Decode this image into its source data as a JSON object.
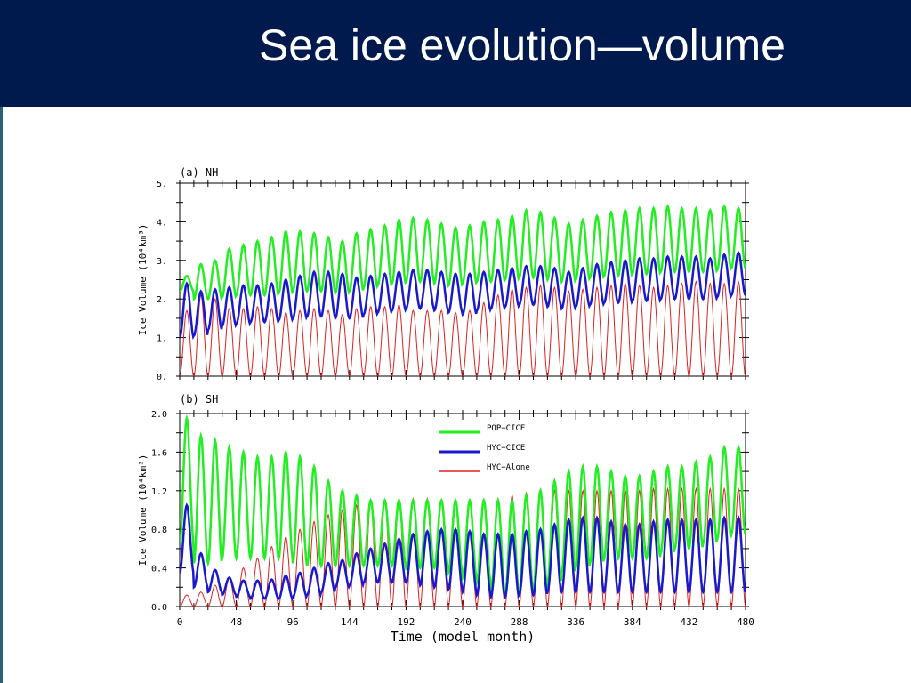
{
  "slide": {
    "title": "Sea ice evolution—volume"
  },
  "colors": {
    "title_bar": "#001a4d",
    "title_text": "#ffffff",
    "background": "#ffffff"
  },
  "chart_data": [
    {
      "type": "line",
      "panel_label": "(a) NH",
      "xlabel": "",
      "ylabel": "Ice Volume (10⁴km³)",
      "xlim": [
        0,
        480
      ],
      "ylim": [
        0,
        5
      ],
      "xticks": [
        0,
        48,
        96,
        144,
        192,
        240,
        288,
        336,
        384,
        432,
        480
      ],
      "yticks": [
        0,
        1,
        2,
        3,
        4,
        5
      ],
      "ytick_labels": [
        "0.",
        "1.",
        "2.",
        "3.",
        "4.",
        "5."
      ],
      "xtick_labels_visible": false,
      "grid": false,
      "series": [
        {
          "name": "POP−CICE",
          "color": "#22ee22",
          "width": 2.5,
          "seasonal_cycle_months": 12,
          "annual_max": [
            2.6,
            2.9,
            3.0,
            3.3,
            3.4,
            3.5,
            3.6,
            3.75,
            3.75,
            3.7,
            3.6,
            3.5,
            3.7,
            3.8,
            3.9,
            4.05,
            4.1,
            4.05,
            3.95,
            3.85,
            3.9,
            4.0,
            4.05,
            4.15,
            4.3,
            4.25,
            4.1,
            3.95,
            4.05,
            4.15,
            4.25,
            4.3,
            4.35,
            4.35,
            4.4,
            4.35,
            4.35,
            4.3,
            4.4,
            4.35
          ],
          "annual_min": [
            2.2,
            2.0,
            2.0,
            2.05,
            2.1,
            2.1,
            2.1,
            2.15,
            2.2,
            2.2,
            2.2,
            2.15,
            2.2,
            2.3,
            2.35,
            2.4,
            2.45,
            2.45,
            2.4,
            2.35,
            2.4,
            2.45,
            2.45,
            2.5,
            2.55,
            2.55,
            2.5,
            2.45,
            2.5,
            2.55,
            2.6,
            2.6,
            2.65,
            2.65,
            2.7,
            2.7,
            2.7,
            2.7,
            2.75,
            2.8
          ]
        },
        {
          "name": "HYC−CICE",
          "color": "#1a1acc",
          "width": 2.5,
          "seasonal_cycle_months": 12,
          "annual_max": [
            2.4,
            2.2,
            2.25,
            2.3,
            2.35,
            2.35,
            2.4,
            2.5,
            2.6,
            2.7,
            2.7,
            2.65,
            2.55,
            2.6,
            2.65,
            2.7,
            2.75,
            2.75,
            2.7,
            2.65,
            2.65,
            2.7,
            2.75,
            2.8,
            2.85,
            2.85,
            2.8,
            2.7,
            2.8,
            2.9,
            2.95,
            3.0,
            3.05,
            3.05,
            3.1,
            3.1,
            3.1,
            3.05,
            3.15,
            3.2
          ],
          "annual_min": [
            1.0,
            1.05,
            1.2,
            1.3,
            1.35,
            1.4,
            1.4,
            1.45,
            1.5,
            1.55,
            1.55,
            1.5,
            1.5,
            1.6,
            1.65,
            1.7,
            1.75,
            1.75,
            1.7,
            1.65,
            1.6,
            1.7,
            1.75,
            1.8,
            1.85,
            1.85,
            1.8,
            1.75,
            1.8,
            1.85,
            1.9,
            1.9,
            1.95,
            1.95,
            2.0,
            2.0,
            2.0,
            2.0,
            2.05,
            2.1
          ]
        },
        {
          "name": "HYC−Alone",
          "color": "#dd2222",
          "width": 1,
          "seasonal_cycle_months": 12,
          "annual_max": [
            1.7,
            2.1,
            2.0,
            1.75,
            1.75,
            1.8,
            1.75,
            1.65,
            1.7,
            1.75,
            1.7,
            1.6,
            1.75,
            1.8,
            1.8,
            1.85,
            1.7,
            1.7,
            1.7,
            1.65,
            1.7,
            1.9,
            2.1,
            2.25,
            2.3,
            2.35,
            2.3,
            2.2,
            2.25,
            2.3,
            2.35,
            2.4,
            2.35,
            2.3,
            2.35,
            2.4,
            2.45,
            2.4,
            2.4,
            2.45
          ],
          "annual_min": [
            0.0,
            0.0,
            0.0,
            0.0,
            0.0,
            0.0,
            0.0,
            0.0,
            0.0,
            0.0,
            0.0,
            0.0,
            0.0,
            0.0,
            0.0,
            0.0,
            0.0,
            0.0,
            0.0,
            0.0,
            0.0,
            0.0,
            0.0,
            0.0,
            0.0,
            0.0,
            0.0,
            0.0,
            0.0,
            0.0,
            0.0,
            0.0,
            0.0,
            0.0,
            0.0,
            0.0,
            0.0,
            0.0,
            0.0,
            0.0
          ]
        }
      ]
    },
    {
      "type": "line",
      "panel_label": "(b) SH",
      "xlabel": "Time (model month)",
      "ylabel": "Ice Volume (10⁴km³)",
      "xlim": [
        0,
        480
      ],
      "ylim": [
        0,
        2.0
      ],
      "xticks": [
        0,
        48,
        96,
        144,
        192,
        240,
        288,
        336,
        384,
        432,
        480
      ],
      "yticks": [
        0,
        0.4,
        0.8,
        1.2,
        1.6,
        2.0
      ],
      "ytick_labels": [
        "0.0",
        "0.4",
        "0.8",
        "1.2",
        "1.6",
        "2.0"
      ],
      "xtick_labels_visible": true,
      "grid": false,
      "legend": {
        "placement": "top-center"
      },
      "series": [
        {
          "name": "POP−CICE",
          "color": "#22ee22",
          "width": 2.5,
          "seasonal_cycle_months": 12,
          "annual_max": [
            1.95,
            1.77,
            1.72,
            1.65,
            1.6,
            1.55,
            1.55,
            1.6,
            1.55,
            1.45,
            1.3,
            1.2,
            1.15,
            1.1,
            1.1,
            1.1,
            1.1,
            1.1,
            1.1,
            1.1,
            1.1,
            1.1,
            1.1,
            1.1,
            1.15,
            1.2,
            1.3,
            1.4,
            1.45,
            1.45,
            1.4,
            1.35,
            1.35,
            1.4,
            1.45,
            1.45,
            1.5,
            1.55,
            1.65,
            1.65
          ],
          "annual_min": [
            0.65,
            0.45,
            0.45,
            0.5,
            0.5,
            0.5,
            0.5,
            0.5,
            0.45,
            0.42,
            0.42,
            0.42,
            0.42,
            0.42,
            0.42,
            0.42,
            0.4,
            0.4,
            0.4,
            0.35,
            0.3,
            0.25,
            0.15,
            0.12,
            0.15,
            0.18,
            0.25,
            0.35,
            0.4,
            0.45,
            0.5,
            0.5,
            0.5,
            0.5,
            0.55,
            0.6,
            0.6,
            0.65,
            0.7,
            0.75
          ]
        },
        {
          "name": "HYC−CICE",
          "color": "#1a1acc",
          "width": 2.5,
          "seasonal_cycle_months": 12,
          "annual_max": [
            1.05,
            0.55,
            0.38,
            0.3,
            0.27,
            0.27,
            0.28,
            0.32,
            0.35,
            0.4,
            0.45,
            0.48,
            0.55,
            0.6,
            0.65,
            0.7,
            0.75,
            0.78,
            0.8,
            0.8,
            0.78,
            0.75,
            0.75,
            0.75,
            0.78,
            0.8,
            0.85,
            0.9,
            0.92,
            0.92,
            0.88,
            0.85,
            0.85,
            0.88,
            0.9,
            0.9,
            0.9,
            0.9,
            0.92,
            0.92
          ],
          "annual_min": [
            0.35,
            0.2,
            0.15,
            0.12,
            0.1,
            0.08,
            0.08,
            0.08,
            0.1,
            0.12,
            0.15,
            0.2,
            0.22,
            0.25,
            0.25,
            0.25,
            0.25,
            0.22,
            0.2,
            0.18,
            0.15,
            0.12,
            0.1,
            0.1,
            0.12,
            0.12,
            0.15,
            0.15,
            0.15,
            0.15,
            0.15,
            0.15,
            0.15,
            0.15,
            0.15,
            0.15,
            0.15,
            0.15,
            0.15,
            0.15
          ]
        },
        {
          "name": "HYC−Alone",
          "color": "#dd2222",
          "width": 1,
          "seasonal_cycle_months": 12,
          "annual_max": [
            0.12,
            0.15,
            0.22,
            0.3,
            0.4,
            0.5,
            0.62,
            0.72,
            0.8,
            0.88,
            0.95,
            1.0,
            1.05,
            1.08,
            1.1,
            1.12,
            1.12,
            1.12,
            1.1,
            1.08,
            1.08,
            1.1,
            1.12,
            1.15,
            1.18,
            1.2,
            1.2,
            1.2,
            1.2,
            1.2,
            1.2,
            1.2,
            1.2,
            1.22,
            1.22,
            1.22,
            1.22,
            1.22,
            1.22,
            1.22
          ],
          "annual_min": [
            0.0,
            0.0,
            0.0,
            0.0,
            0.0,
            0.0,
            0.0,
            0.0,
            0.0,
            0.0,
            0.0,
            0.0,
            0.0,
            0.0,
            0.0,
            0.0,
            0.0,
            0.0,
            0.0,
            0.0,
            0.0,
            0.0,
            0.0,
            0.0,
            0.0,
            0.0,
            0.0,
            0.0,
            0.0,
            0.0,
            0.0,
            0.0,
            0.0,
            0.0,
            0.0,
            0.0,
            0.0,
            0.0,
            0.0,
            0.0
          ]
        }
      ]
    }
  ]
}
